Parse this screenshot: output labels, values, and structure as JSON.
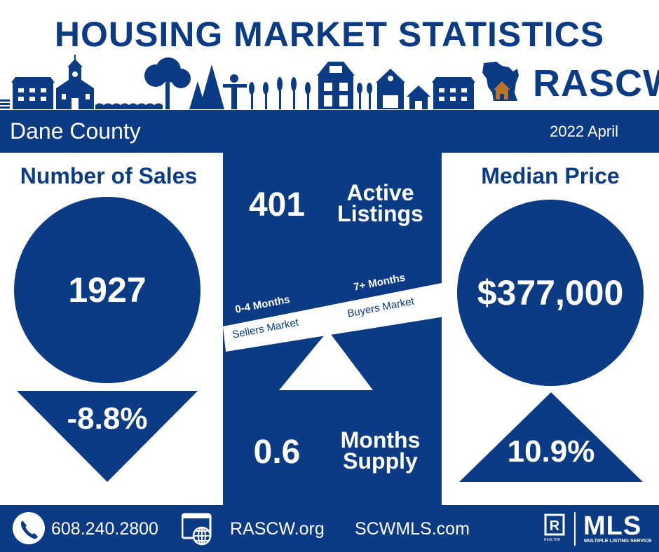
{
  "header": {
    "title": "HOUSING MARKET STATISTICS",
    "logo_text": "RASCW"
  },
  "info_bar": {
    "county": "Dane County",
    "period": "2022 April"
  },
  "sales": {
    "title": "Number of Sales",
    "value": "1927",
    "change": "-8.8%",
    "change_direction": "down"
  },
  "active_listings": {
    "value": "401",
    "label_line1": "Active",
    "label_line2": "Listings"
  },
  "market_scale": {
    "left_top": "0-4 Months",
    "left_bottom": "Sellers Market",
    "right_top": "7+ Months",
    "right_bottom": "Buyers Market"
  },
  "months_supply": {
    "value": "0.6",
    "label_line1": "Months",
    "label_line2": "Supply"
  },
  "median_price": {
    "title": "Median Price",
    "value": "$377,000",
    "change": "10.9%",
    "change_direction": "up"
  },
  "footer": {
    "phone": "608.240.2800",
    "website1": "RASCW.org",
    "website2": "SCWMLS.com",
    "realtor_mark": "REALTOR",
    "mls_label": "MLS",
    "mls_sub": "MULTIPLE LISTING SERVICE"
  },
  "colors": {
    "primary": "#0b3b85",
    "accent": "#b5742a",
    "background": "#ffffff"
  },
  "icons": [
    "phone-icon",
    "web-icon",
    "realtor-icon",
    "wisconsin-house-icon"
  ]
}
